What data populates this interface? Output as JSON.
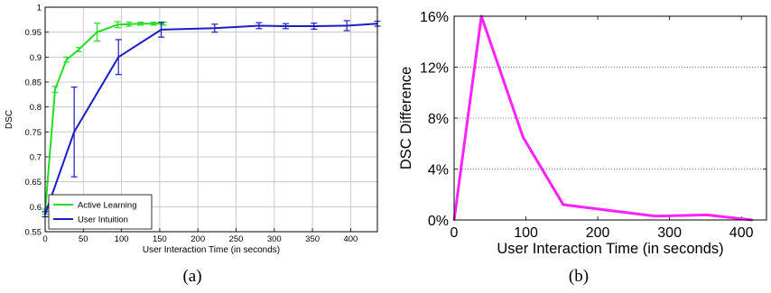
{
  "chart_data": [
    {
      "type": "line",
      "panel_label": "(a)",
      "xlabel": "User Interaction Time (in seconds)",
      "ylabel": "DSC",
      "xlim": [
        0,
        435
      ],
      "ylim": [
        0.55,
        1
      ],
      "xticks": [
        0,
        50,
        100,
        150,
        200,
        250,
        300,
        350,
        400
      ],
      "yticks": [
        0.55,
        0.6,
        0.65,
        0.7,
        0.75,
        0.8,
        0.85,
        0.9,
        0.95,
        1
      ],
      "ytick_labels": [
        "0.55",
        "0.6",
        "0.65",
        "0.7",
        "0.75",
        "0.8",
        "0.85",
        "0.9",
        "0.95",
        "1"
      ],
      "grid": true,
      "legend_position": "bottom-left",
      "series": [
        {
          "name": "Active Learning",
          "color": "#22dd22",
          "x": [
            0,
            13,
            28,
            44,
            68,
            95,
            110,
            125,
            142,
            155
          ],
          "y": [
            0.59,
            0.835,
            0.895,
            0.915,
            0.95,
            0.965,
            0.966,
            0.967,
            0.967,
            0.967
          ],
          "err": [
            0.005,
            0.006,
            0.005,
            0.004,
            0.018,
            0.006,
            0.004,
            0.003,
            0.003,
            0.003
          ]
        },
        {
          "name": "User Intuition",
          "color": "#1c1cc8",
          "x": [
            0,
            38,
            96,
            152,
            222,
            280,
            315,
            352,
            395,
            435
          ],
          "y": [
            0.585,
            0.75,
            0.9,
            0.955,
            0.958,
            0.963,
            0.962,
            0.962,
            0.963,
            0.967
          ],
          "err": [
            0.005,
            0.09,
            0.035,
            0.015,
            0.008,
            0.006,
            0.005,
            0.006,
            0.01,
            0.005
          ]
        }
      ]
    },
    {
      "type": "line",
      "panel_label": "(b)",
      "xlabel": "User Interaction Time (in seconds)",
      "ylabel": "DSC Difference",
      "xlim": [
        0,
        435
      ],
      "ylim": [
        0,
        16
      ],
      "xticks": [
        0,
        100,
        200,
        300,
        400
      ],
      "yticks": [
        0,
        4,
        8,
        12,
        16
      ],
      "ytick_labels": [
        "0%",
        "4%",
        "8%",
        "12%",
        "16%"
      ],
      "grid": "horizontal-dotted",
      "series": [
        {
          "color": "#ff22ff",
          "x": [
            0,
            38,
            96,
            152,
            280,
            352,
            415
          ],
          "y": [
            0,
            16,
            6.5,
            1.2,
            0.3,
            0.4,
            0
          ]
        }
      ]
    }
  ]
}
